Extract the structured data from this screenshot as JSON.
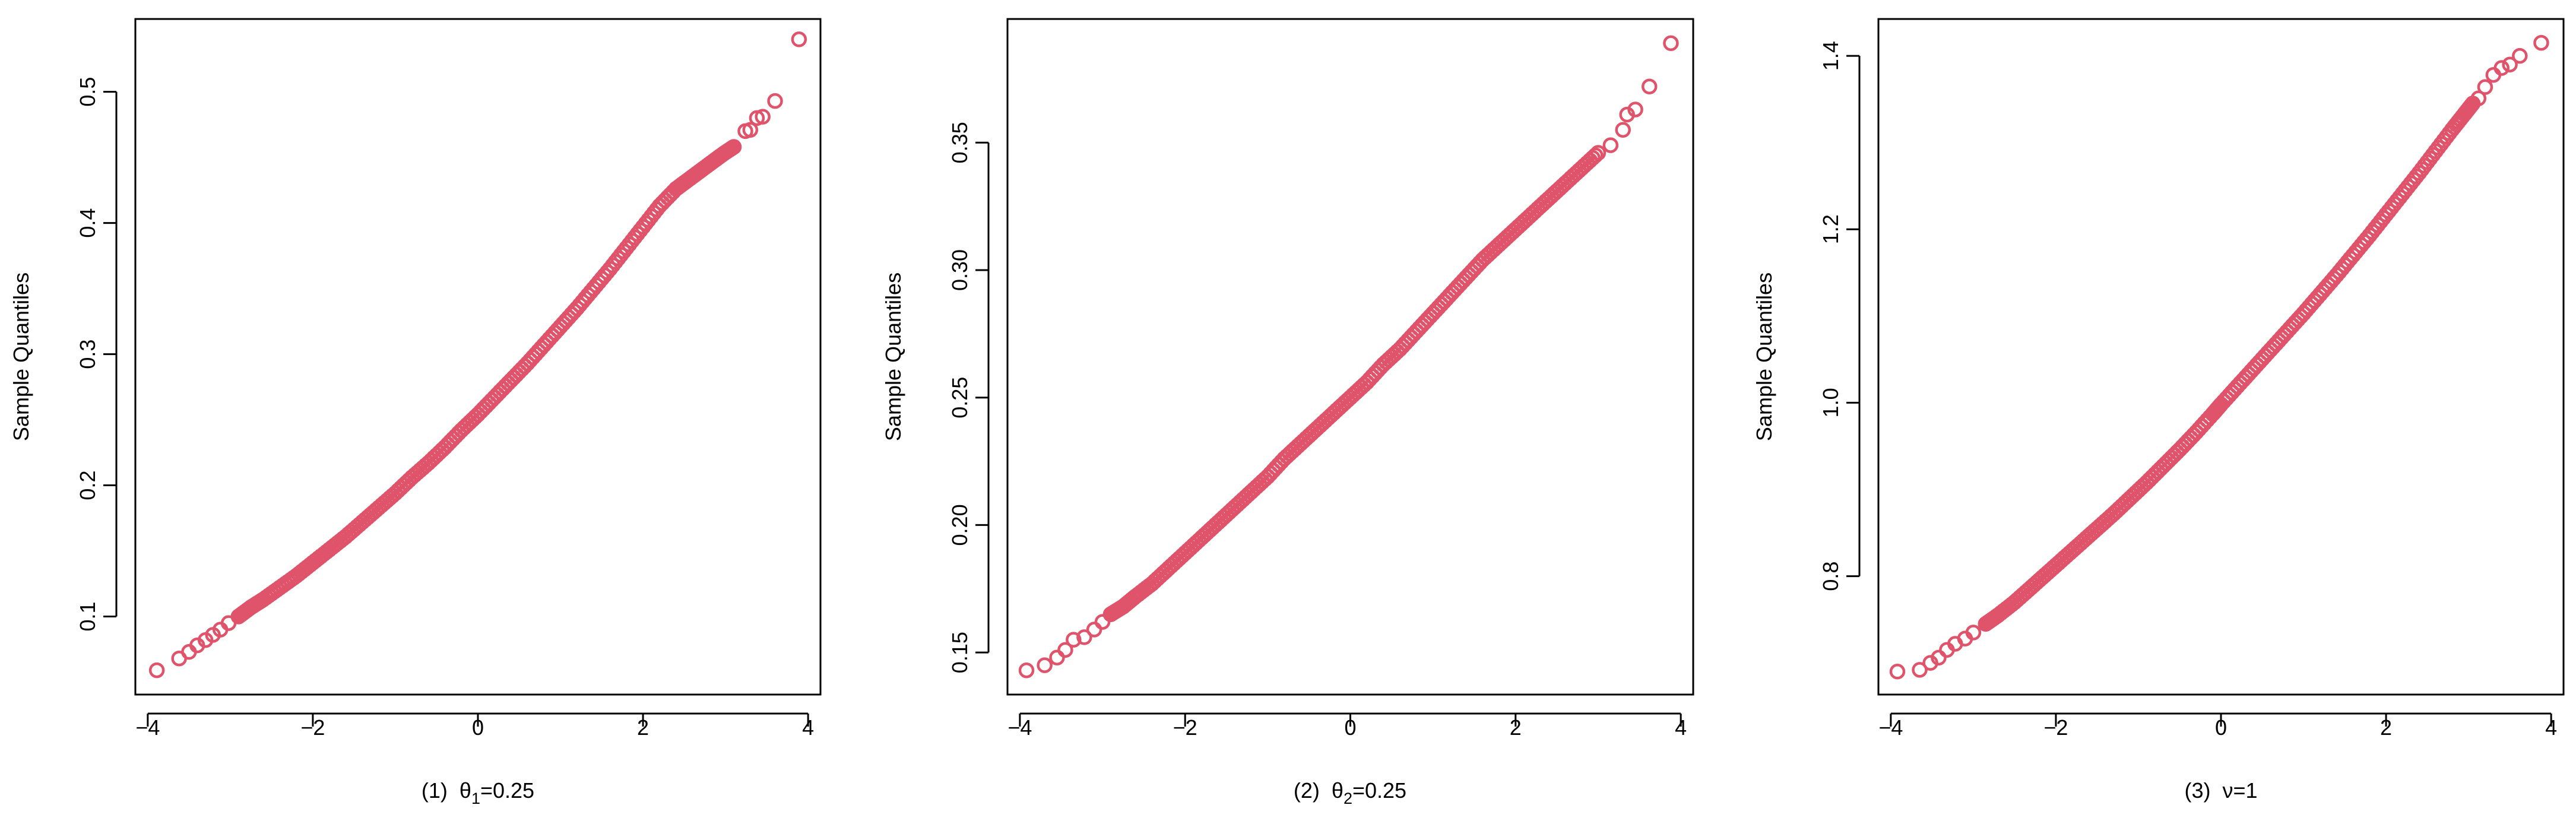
{
  "colors": {
    "points": "#df536b",
    "axis": "#000000",
    "background": "#ffffff"
  },
  "chart_data": [
    {
      "type": "scatter",
      "kind": "normal-qq",
      "ylabel": "Sample Quantiles",
      "xlabel_parts": {
        "prefix": "(1)  ",
        "symbol": "θ",
        "subscript": "1",
        "suffix": "=0.25"
      },
      "xlim": [
        -4.15,
        4.15
      ],
      "ylim": [
        0.0405,
        0.5555
      ],
      "xticks": [
        -4,
        -2,
        0,
        2,
        4
      ],
      "xtick_labels": [
        "−4",
        "−2",
        "0",
        "2",
        "4"
      ],
      "yticks": [
        0.1,
        0.2,
        0.3,
        0.4,
        0.5
      ],
      "ytick_labels": [
        "0.1",
        "0.2",
        "0.3",
        "0.4",
        "0.5"
      ],
      "points": [
        [
          -3.89,
          0.059
        ],
        [
          -3.62,
          0.068
        ],
        [
          -3.5,
          0.073
        ],
        [
          -3.4,
          0.078
        ],
        [
          -3.3,
          0.082
        ],
        [
          -3.21,
          0.086
        ],
        [
          -3.12,
          0.09
        ],
        [
          -3.02,
          0.095
        ],
        [
          -2.9,
          0.1
        ],
        [
          -2.75,
          0.107
        ],
        [
          -2.6,
          0.113
        ],
        [
          -2.4,
          0.122
        ],
        [
          -2.2,
          0.131
        ],
        [
          -2.0,
          0.141
        ],
        [
          -1.8,
          0.151
        ],
        [
          -1.6,
          0.161
        ],
        [
          -1.4,
          0.172
        ],
        [
          -1.2,
          0.183
        ],
        [
          -1.0,
          0.194
        ],
        [
          -0.8,
          0.206
        ],
        [
          -0.6,
          0.217
        ],
        [
          -0.4,
          0.229
        ],
        [
          -0.2,
          0.242
        ],
        [
          0.0,
          0.254
        ],
        [
          0.2,
          0.267
        ],
        [
          0.4,
          0.28
        ],
        [
          0.6,
          0.293
        ],
        [
          0.8,
          0.307
        ],
        [
          1.0,
          0.321
        ],
        [
          1.2,
          0.335
        ],
        [
          1.4,
          0.35
        ],
        [
          1.6,
          0.365
        ],
        [
          1.8,
          0.381
        ],
        [
          2.0,
          0.397
        ],
        [
          2.2,
          0.413
        ],
        [
          2.4,
          0.426
        ],
        [
          2.55,
          0.433
        ],
        [
          2.7,
          0.44
        ],
        [
          2.85,
          0.447
        ],
        [
          2.98,
          0.453
        ],
        [
          3.1,
          0.458
        ],
        [
          3.24,
          0.47
        ],
        [
          3.3,
          0.471
        ],
        [
          3.38,
          0.48
        ],
        [
          3.45,
          0.481
        ],
        [
          3.6,
          0.493
        ],
        [
          3.89,
          0.54
        ]
      ]
    },
    {
      "type": "scatter",
      "kind": "normal-qq",
      "ylabel": "Sample Quantiles",
      "xlabel_parts": {
        "prefix": "(2)  ",
        "symbol": "θ",
        "subscript": "2",
        "suffix": "=0.25"
      },
      "xlim": [
        -4.15,
        4.15
      ],
      "ylim": [
        0.1335,
        0.3985
      ],
      "xticks": [
        -4,
        -2,
        0,
        2,
        4
      ],
      "xtick_labels": [
        "−4",
        "−2",
        "0",
        "2",
        "4"
      ],
      "yticks": [
        0.15,
        0.2,
        0.25,
        0.3,
        0.35
      ],
      "ytick_labels": [
        "0.15",
        "0.20",
        "0.25",
        "0.30",
        "0.35"
      ],
      "points": [
        [
          -3.92,
          0.143
        ],
        [
          -3.7,
          0.145
        ],
        [
          -3.55,
          0.148
        ],
        [
          -3.45,
          0.151
        ],
        [
          -3.35,
          0.155
        ],
        [
          -3.22,
          0.156
        ],
        [
          -3.1,
          0.159
        ],
        [
          -3.0,
          0.162
        ],
        [
          -2.9,
          0.165
        ],
        [
          -2.75,
          0.168
        ],
        [
          -2.6,
          0.172
        ],
        [
          -2.4,
          0.177
        ],
        [
          -2.2,
          0.183
        ],
        [
          -2.0,
          0.189
        ],
        [
          -1.8,
          0.195
        ],
        [
          -1.6,
          0.201
        ],
        [
          -1.4,
          0.207
        ],
        [
          -1.2,
          0.213
        ],
        [
          -1.0,
          0.219
        ],
        [
          -0.8,
          0.226
        ],
        [
          -0.6,
          0.232
        ],
        [
          -0.4,
          0.238
        ],
        [
          -0.2,
          0.244
        ],
        [
          0.0,
          0.25
        ],
        [
          0.2,
          0.256
        ],
        [
          0.4,
          0.263
        ],
        [
          0.6,
          0.269
        ],
        [
          0.8,
          0.276
        ],
        [
          1.0,
          0.283
        ],
        [
          1.2,
          0.29
        ],
        [
          1.4,
          0.297
        ],
        [
          1.6,
          0.304
        ],
        [
          1.8,
          0.31
        ],
        [
          2.0,
          0.316
        ],
        [
          2.2,
          0.322
        ],
        [
          2.4,
          0.328
        ],
        [
          2.6,
          0.334
        ],
        [
          2.8,
          0.34
        ],
        [
          3.0,
          0.346
        ],
        [
          3.15,
          0.349
        ],
        [
          3.3,
          0.355
        ],
        [
          3.35,
          0.361
        ],
        [
          3.45,
          0.363
        ],
        [
          3.62,
          0.372
        ],
        [
          3.88,
          0.389
        ]
      ]
    },
    {
      "type": "scatter",
      "kind": "normal-qq",
      "ylabel": "Sample Quantiles",
      "xlabel_parts": {
        "prefix": "(3)  ",
        "symbol": "ν",
        "subscript": "",
        "suffix": "=1"
      },
      "xlim": [
        -4.15,
        4.15
      ],
      "ylim": [
        0.6635,
        1.4425
      ],
      "xticks": [
        -4,
        -2,
        0,
        2,
        4
      ],
      "xtick_labels": [
        "−4",
        "−2",
        "0",
        "2",
        "4"
      ],
      "yticks": [
        0.8,
        1.0,
        1.2,
        1.4
      ],
      "ytick_labels": [
        "0.8",
        "1.0",
        "1.2",
        "1.4"
      ],
      "points": [
        [
          -3.92,
          0.69
        ],
        [
          -3.65,
          0.692
        ],
        [
          -3.52,
          0.7
        ],
        [
          -3.42,
          0.706
        ],
        [
          -3.32,
          0.715
        ],
        [
          -3.22,
          0.722
        ],
        [
          -3.1,
          0.728
        ],
        [
          -3.0,
          0.735
        ],
        [
          -2.85,
          0.745
        ],
        [
          -2.7,
          0.755
        ],
        [
          -2.5,
          0.77
        ],
        [
          -2.3,
          0.787
        ],
        [
          -2.1,
          0.804
        ],
        [
          -1.9,
          0.821
        ],
        [
          -1.7,
          0.838
        ],
        [
          -1.5,
          0.855
        ],
        [
          -1.3,
          0.872
        ],
        [
          -1.1,
          0.89
        ],
        [
          -0.9,
          0.908
        ],
        [
          -0.7,
          0.927
        ],
        [
          -0.5,
          0.946
        ],
        [
          -0.3,
          0.966
        ],
        [
          -0.1,
          0.987
        ],
        [
          0.0,
          0.998
        ],
        [
          0.2,
          1.019
        ],
        [
          0.4,
          1.04
        ],
        [
          0.6,
          1.061
        ],
        [
          0.8,
          1.082
        ],
        [
          1.0,
          1.103
        ],
        [
          1.2,
          1.125
        ],
        [
          1.4,
          1.147
        ],
        [
          1.6,
          1.17
        ],
        [
          1.8,
          1.193
        ],
        [
          2.0,
          1.217
        ],
        [
          2.2,
          1.241
        ],
        [
          2.4,
          1.265
        ],
        [
          2.6,
          1.29
        ],
        [
          2.8,
          1.315
        ],
        [
          2.95,
          1.333
        ],
        [
          3.05,
          1.345
        ],
        [
          3.12,
          1.351
        ],
        [
          3.2,
          1.364
        ],
        [
          3.3,
          1.378
        ],
        [
          3.4,
          1.386
        ],
        [
          3.5,
          1.39
        ],
        [
          3.62,
          1.4
        ],
        [
          3.88,
          1.415
        ]
      ]
    }
  ]
}
